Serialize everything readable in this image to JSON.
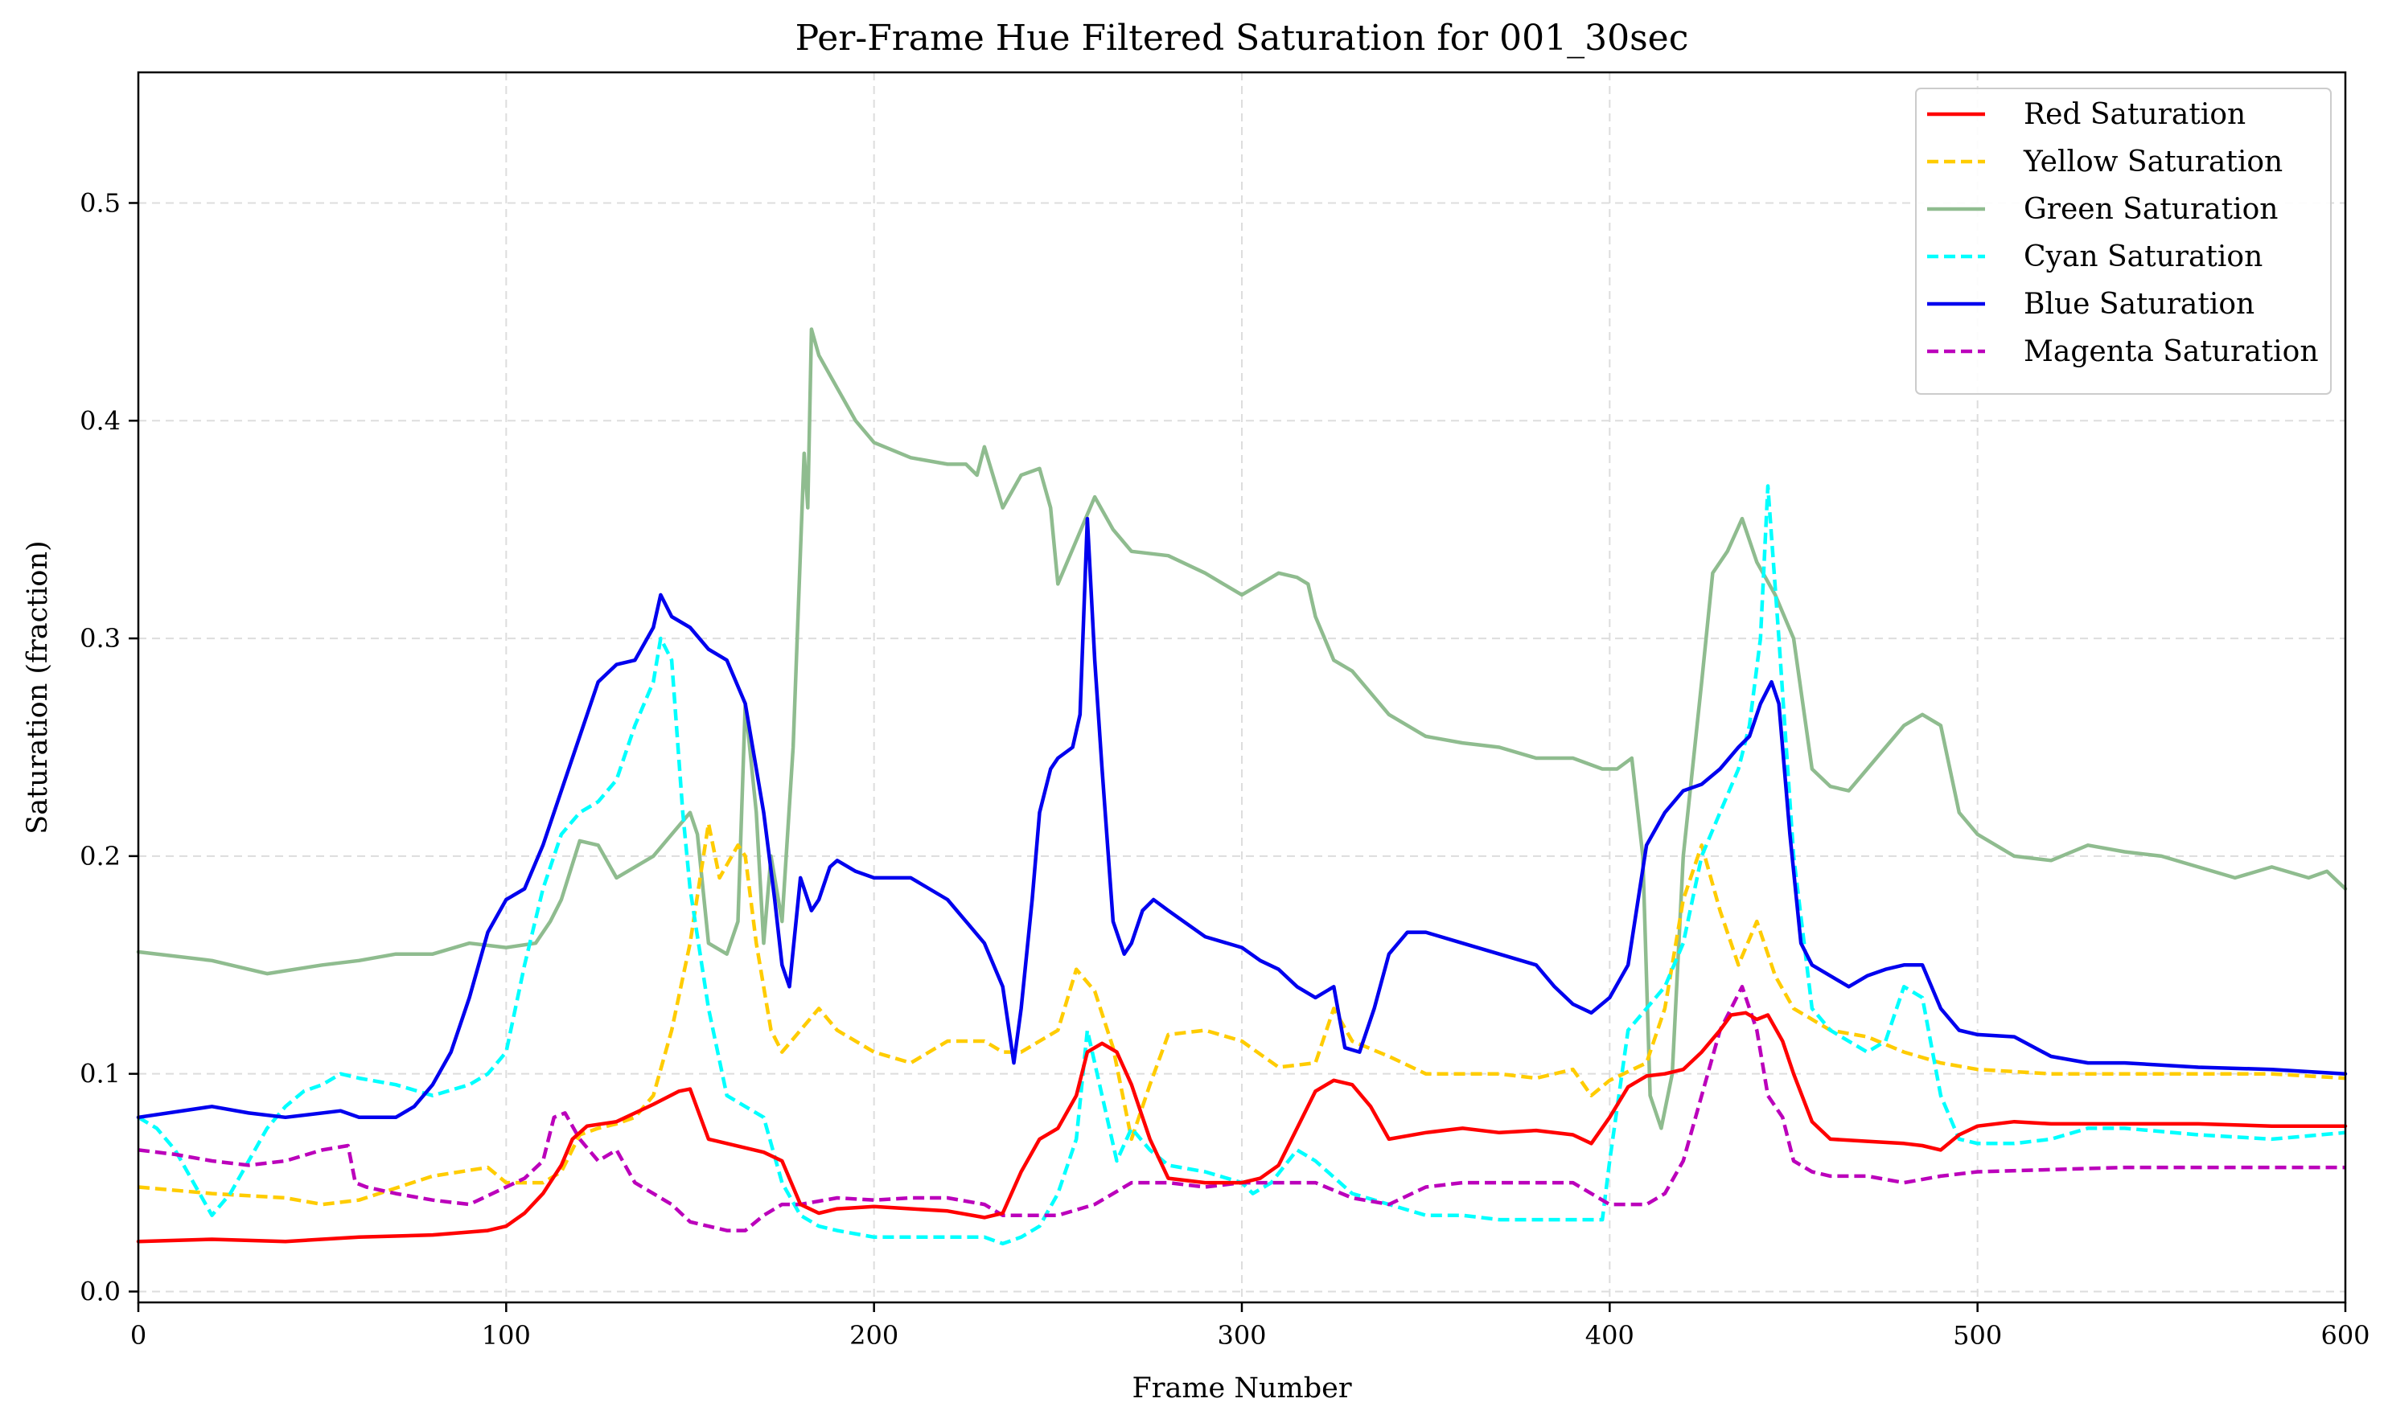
{
  "chart_data": {
    "type": "line",
    "title": "Per-Frame Hue Filtered Saturation for 001_30sec",
    "xlabel": "Frame Number",
    "ylabel": "Saturation (fraction)",
    "xlim": [
      0,
      600
    ],
    "ylim": [
      -0.005,
      0.56
    ],
    "xticks": [
      0,
      100,
      200,
      300,
      400,
      500,
      600
    ],
    "yticks": [
      0.0,
      0.1,
      0.2,
      0.3,
      0.4,
      0.5
    ],
    "xtick_labels": [
      "0",
      "100",
      "200",
      "300",
      "400",
      "500",
      "600"
    ],
    "ytick_labels": [
      "0.0",
      "0.1",
      "0.2",
      "0.3",
      "0.4",
      "0.5"
    ],
    "grid": true,
    "legend_position": "top-right",
    "series": [
      {
        "name": "Red Saturation",
        "color": "#ff0000",
        "dash": "solid",
        "x": [
          0,
          20,
          40,
          60,
          80,
          95,
          100,
          105,
          110,
          115,
          118,
          122,
          130,
          140,
          147,
          150,
          155,
          160,
          170,
          175,
          180,
          185,
          190,
          200,
          220,
          230,
          235,
          240,
          245,
          250,
          255,
          258,
          262,
          266,
          270,
          275,
          280,
          290,
          300,
          305,
          310,
          315,
          320,
          325,
          330,
          335,
          340,
          350,
          360,
          370,
          380,
          390,
          395,
          400,
          405,
          410,
          415,
          420,
          425,
          430,
          433,
          437,
          440,
          443,
          447,
          450,
          455,
          460,
          470,
          480,
          485,
          490,
          495,
          500,
          510,
          520,
          540,
          560,
          580,
          600
        ],
        "y": [
          0.023,
          0.024,
          0.023,
          0.025,
          0.026,
          0.028,
          0.03,
          0.036,
          0.045,
          0.058,
          0.07,
          0.076,
          0.078,
          0.086,
          0.092,
          0.093,
          0.07,
          0.068,
          0.064,
          0.06,
          0.04,
          0.036,
          0.038,
          0.039,
          0.037,
          0.034,
          0.036,
          0.055,
          0.07,
          0.075,
          0.09,
          0.11,
          0.114,
          0.11,
          0.095,
          0.07,
          0.052,
          0.05,
          0.05,
          0.052,
          0.058,
          0.075,
          0.092,
          0.097,
          0.095,
          0.085,
          0.07,
          0.073,
          0.075,
          0.073,
          0.074,
          0.072,
          0.068,
          0.08,
          0.094,
          0.099,
          0.1,
          0.102,
          0.11,
          0.12,
          0.127,
          0.128,
          0.125,
          0.127,
          0.115,
          0.1,
          0.078,
          0.07,
          0.069,
          0.068,
          0.067,
          0.065,
          0.072,
          0.076,
          0.078,
          0.077,
          0.077,
          0.077,
          0.076,
          0.076
        ]
      },
      {
        "name": "Yellow Saturation",
        "color": "#ffcc00",
        "dash": "dashed",
        "x": [
          0,
          20,
          40,
          50,
          60,
          80,
          95,
          100,
          110,
          115,
          120,
          125,
          130,
          135,
          140,
          145,
          150,
          155,
          158,
          163,
          165,
          168,
          172,
          175,
          180,
          185,
          190,
          200,
          210,
          220,
          230,
          235,
          240,
          245,
          250,
          255,
          260,
          265,
          270,
          275,
          280,
          290,
          300,
          310,
          320,
          325,
          330,
          340,
          350,
          360,
          370,
          380,
          390,
          395,
          400,
          410,
          415,
          420,
          425,
          430,
          435,
          440,
          445,
          450,
          460,
          470,
          480,
          490,
          500,
          520,
          540,
          560,
          580,
          600
        ],
        "y": [
          0.048,
          0.045,
          0.043,
          0.04,
          0.042,
          0.053,
          0.057,
          0.05,
          0.05,
          0.055,
          0.072,
          0.075,
          0.077,
          0.08,
          0.09,
          0.12,
          0.16,
          0.215,
          0.19,
          0.205,
          0.2,
          0.16,
          0.12,
          0.11,
          0.12,
          0.13,
          0.12,
          0.11,
          0.105,
          0.115,
          0.115,
          0.11,
          0.11,
          0.115,
          0.12,
          0.148,
          0.138,
          0.112,
          0.07,
          0.095,
          0.118,
          0.12,
          0.115,
          0.103,
          0.105,
          0.13,
          0.115,
          0.108,
          0.1,
          0.1,
          0.1,
          0.098,
          0.102,
          0.09,
          0.097,
          0.105,
          0.13,
          0.18,
          0.205,
          0.175,
          0.15,
          0.17,
          0.145,
          0.13,
          0.12,
          0.117,
          0.11,
          0.105,
          0.102,
          0.1,
          0.1,
          0.1,
          0.1,
          0.098
        ]
      },
      {
        "name": "Green Saturation",
        "color": "#8fbc8f",
        "dash": "solid",
        "x": [
          0,
          20,
          35,
          50,
          60,
          70,
          80,
          90,
          100,
          108,
          112,
          115,
          120,
          125,
          130,
          135,
          140,
          145,
          150,
          152,
          155,
          160,
          163,
          165,
          168,
          170,
          172,
          175,
          178,
          180,
          181,
          182,
          183,
          185,
          190,
          195,
          200,
          210,
          220,
          225,
          228,
          230,
          235,
          240,
          245,
          248,
          250,
          255,
          260,
          265,
          270,
          280,
          290,
          295,
          300,
          305,
          310,
          315,
          318,
          320,
          325,
          330,
          340,
          350,
          360,
          370,
          380,
          390,
          398,
          402,
          406,
          409,
          411,
          414,
          417,
          420,
          425,
          428,
          432,
          436,
          440,
          445,
          450,
          455,
          460,
          465,
          470,
          475,
          480,
          485,
          490,
          495,
          500,
          510,
          520,
          530,
          540,
          550,
          560,
          570,
          580,
          590,
          595,
          600
        ],
        "y": [
          0.156,
          0.152,
          0.146,
          0.15,
          0.152,
          0.155,
          0.155,
          0.16,
          0.158,
          0.16,
          0.17,
          0.18,
          0.207,
          0.205,
          0.19,
          0.195,
          0.2,
          0.21,
          0.22,
          0.21,
          0.16,
          0.155,
          0.17,
          0.27,
          0.22,
          0.16,
          0.2,
          0.17,
          0.25,
          0.34,
          0.385,
          0.36,
          0.442,
          0.43,
          0.415,
          0.4,
          0.39,
          0.383,
          0.38,
          0.38,
          0.375,
          0.388,
          0.36,
          0.375,
          0.378,
          0.36,
          0.325,
          0.345,
          0.365,
          0.35,
          0.34,
          0.338,
          0.33,
          0.325,
          0.32,
          0.325,
          0.33,
          0.328,
          0.325,
          0.31,
          0.29,
          0.285,
          0.265,
          0.255,
          0.252,
          0.25,
          0.245,
          0.245,
          0.24,
          0.24,
          0.245,
          0.2,
          0.09,
          0.075,
          0.1,
          0.2,
          0.28,
          0.33,
          0.34,
          0.355,
          0.335,
          0.32,
          0.3,
          0.24,
          0.232,
          0.23,
          0.24,
          0.25,
          0.26,
          0.265,
          0.26,
          0.22,
          0.21,
          0.2,
          0.198,
          0.205,
          0.202,
          0.2,
          0.195,
          0.19,
          0.195,
          0.19,
          0.193,
          0.185
        ]
      },
      {
        "name": "Cyan Saturation",
        "color": "#00ffff",
        "dash": "dashed",
        "x": [
          0,
          5,
          10,
          15,
          20,
          25,
          30,
          35,
          40,
          45,
          50,
          55,
          60,
          70,
          80,
          90,
          95,
          100,
          105,
          110,
          115,
          120,
          125,
          130,
          135,
          140,
          142,
          145,
          148,
          150,
          155,
          160,
          165,
          170,
          175,
          180,
          185,
          190,
          200,
          210,
          220,
          230,
          235,
          240,
          245,
          250,
          255,
          258,
          262,
          266,
          270,
          275,
          280,
          290,
          300,
          303,
          308,
          315,
          320,
          330,
          340,
          350,
          360,
          370,
          380,
          390,
          398,
          400,
          405,
          410,
          415,
          420,
          425,
          430,
          435,
          438,
          441,
          443,
          446,
          450,
          455,
          460,
          470,
          475,
          480,
          485,
          490,
          495,
          500,
          510,
          520,
          530,
          540,
          560,
          580,
          600
        ],
        "y": [
          0.08,
          0.075,
          0.065,
          0.05,
          0.035,
          0.045,
          0.06,
          0.075,
          0.085,
          0.092,
          0.095,
          0.1,
          0.098,
          0.095,
          0.09,
          0.095,
          0.1,
          0.11,
          0.15,
          0.185,
          0.21,
          0.22,
          0.225,
          0.235,
          0.26,
          0.28,
          0.3,
          0.29,
          0.22,
          0.185,
          0.13,
          0.09,
          0.085,
          0.08,
          0.05,
          0.035,
          0.03,
          0.028,
          0.025,
          0.025,
          0.025,
          0.025,
          0.022,
          0.025,
          0.03,
          0.045,
          0.07,
          0.12,
          0.09,
          0.06,
          0.075,
          0.065,
          0.058,
          0.055,
          0.05,
          0.045,
          0.05,
          0.065,
          0.06,
          0.045,
          0.04,
          0.035,
          0.035,
          0.033,
          0.033,
          0.033,
          0.033,
          0.06,
          0.12,
          0.13,
          0.14,
          0.16,
          0.2,
          0.22,
          0.24,
          0.26,
          0.3,
          0.37,
          0.3,
          0.2,
          0.13,
          0.12,
          0.11,
          0.115,
          0.14,
          0.135,
          0.09,
          0.07,
          0.068,
          0.068,
          0.07,
          0.075,
          0.075,
          0.072,
          0.07,
          0.073
        ]
      },
      {
        "name": "Blue Saturation",
        "color": "#0000ee",
        "dash": "solid",
        "x": [
          0,
          20,
          30,
          40,
          55,
          60,
          70,
          75,
          80,
          85,
          90,
          95,
          100,
          105,
          110,
          115,
          120,
          125,
          130,
          135,
          140,
          142,
          145,
          150,
          155,
          160,
          165,
          170,
          173,
          175,
          177,
          180,
          183,
          185,
          188,
          190,
          195,
          200,
          205,
          210,
          220,
          225,
          230,
          235,
          238,
          240,
          243,
          245,
          248,
          250,
          254,
          256,
          258,
          260,
          262,
          265,
          268,
          270,
          273,
          276,
          280,
          290,
          300,
          305,
          310,
          315,
          320,
          325,
          328,
          332,
          336,
          340,
          345,
          350,
          360,
          370,
          380,
          385,
          390,
          395,
          400,
          405,
          410,
          415,
          420,
          425,
          430,
          435,
          438,
          441,
          444,
          446,
          449,
          452,
          455,
          460,
          465,
          470,
          475,
          480,
          485,
          490,
          495,
          500,
          510,
          520,
          530,
          540,
          560,
          580,
          600
        ],
        "y": [
          0.08,
          0.085,
          0.082,
          0.08,
          0.083,
          0.08,
          0.08,
          0.085,
          0.095,
          0.11,
          0.135,
          0.165,
          0.18,
          0.185,
          0.205,
          0.23,
          0.255,
          0.28,
          0.288,
          0.29,
          0.305,
          0.32,
          0.31,
          0.305,
          0.295,
          0.29,
          0.27,
          0.22,
          0.18,
          0.15,
          0.14,
          0.19,
          0.175,
          0.18,
          0.195,
          0.198,
          0.193,
          0.19,
          0.19,
          0.19,
          0.18,
          0.17,
          0.16,
          0.14,
          0.105,
          0.13,
          0.18,
          0.22,
          0.24,
          0.245,
          0.25,
          0.265,
          0.355,
          0.29,
          0.24,
          0.17,
          0.155,
          0.16,
          0.175,
          0.18,
          0.175,
          0.163,
          0.158,
          0.152,
          0.148,
          0.14,
          0.135,
          0.14,
          0.112,
          0.11,
          0.13,
          0.155,
          0.165,
          0.165,
          0.16,
          0.155,
          0.15,
          0.14,
          0.132,
          0.128,
          0.135,
          0.15,
          0.205,
          0.22,
          0.23,
          0.233,
          0.24,
          0.25,
          0.255,
          0.27,
          0.28,
          0.27,
          0.21,
          0.16,
          0.15,
          0.145,
          0.14,
          0.145,
          0.148,
          0.15,
          0.15,
          0.13,
          0.12,
          0.118,
          0.117,
          0.108,
          0.105,
          0.105,
          0.103,
          0.102,
          0.1
        ]
      },
      {
        "name": "Magenta Saturation",
        "color": "#bb00bb",
        "dash": "dashed",
        "x": [
          0,
          10,
          20,
          30,
          40,
          50,
          57,
          59,
          62,
          70,
          80,
          90,
          100,
          105,
          110,
          113,
          116,
          120,
          125,
          130,
          135,
          140,
          145,
          150,
          155,
          160,
          165,
          170,
          175,
          180,
          190,
          200,
          210,
          220,
          230,
          235,
          240,
          250,
          260,
          270,
          280,
          290,
          300,
          310,
          320,
          330,
          340,
          350,
          360,
          370,
          380,
          390,
          400,
          410,
          415,
          420,
          425,
          430,
          433,
          436,
          440,
          443,
          447,
          450,
          455,
          460,
          470,
          480,
          490,
          500,
          520,
          540,
          560,
          580,
          600
        ],
        "y": [
          0.065,
          0.063,
          0.06,
          0.058,
          0.06,
          0.065,
          0.067,
          0.05,
          0.048,
          0.045,
          0.042,
          0.04,
          0.048,
          0.052,
          0.06,
          0.08,
          0.082,
          0.07,
          0.06,
          0.065,
          0.05,
          0.045,
          0.04,
          0.032,
          0.03,
          0.028,
          0.028,
          0.035,
          0.04,
          0.04,
          0.043,
          0.042,
          0.043,
          0.043,
          0.04,
          0.035,
          0.035,
          0.035,
          0.04,
          0.05,
          0.05,
          0.048,
          0.05,
          0.05,
          0.05,
          0.043,
          0.04,
          0.048,
          0.05,
          0.05,
          0.05,
          0.05,
          0.04,
          0.04,
          0.045,
          0.06,
          0.09,
          0.12,
          0.13,
          0.14,
          0.12,
          0.09,
          0.08,
          0.06,
          0.055,
          0.053,
          0.053,
          0.05,
          0.053,
          0.055,
          0.056,
          0.057,
          0.057,
          0.057,
          0.057
        ]
      }
    ]
  }
}
